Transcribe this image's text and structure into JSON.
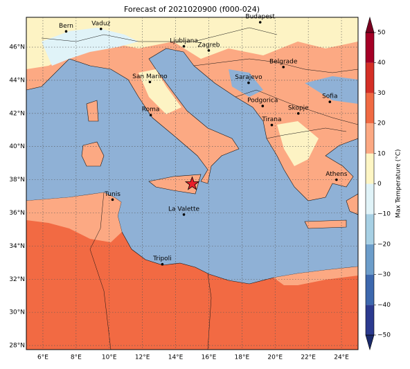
{
  "map": {
    "title": "Forecast of 2021020900 (f000-024)",
    "xlim": [
      5,
      25
    ],
    "ylim": [
      27.75,
      47.8
    ],
    "grid": true,
    "xticks": [
      {
        "value": 6,
        "label": "6°E"
      },
      {
        "value": 8,
        "label": "8°E"
      },
      {
        "value": 10,
        "label": "10°E"
      },
      {
        "value": 12,
        "label": "12°E"
      },
      {
        "value": 14,
        "label": "14°E"
      },
      {
        "value": 16,
        "label": "16°E"
      },
      {
        "value": 18,
        "label": "18°E"
      },
      {
        "value": 20,
        "label": "20°E"
      },
      {
        "value": 22,
        "label": "22°E"
      },
      {
        "value": 24,
        "label": "24°E"
      }
    ],
    "yticks": [
      {
        "value": 28,
        "label": "28°N"
      },
      {
        "value": 30,
        "label": "30°N"
      },
      {
        "value": 32,
        "label": "32°N"
      },
      {
        "value": 34,
        "label": "34°N"
      },
      {
        "value": 36,
        "label": "36°N"
      },
      {
        "value": 38,
        "label": "38°N"
      },
      {
        "value": 40,
        "label": "40°N"
      },
      {
        "value": 42,
        "label": "42°N"
      },
      {
        "value": 44,
        "label": "44°N"
      },
      {
        "value": 46,
        "label": "46°N"
      }
    ],
    "cities": [
      {
        "name": "Bern",
        "lon": 7.4,
        "lat": 46.95
      },
      {
        "name": "Vaduz",
        "lon": 9.5,
        "lat": 47.1
      },
      {
        "name": "Budapest",
        "lon": 19.1,
        "lat": 47.5
      },
      {
        "name": "Ljubljana",
        "lon": 14.5,
        "lat": 46.05
      },
      {
        "name": "Zagreb",
        "lon": 16.0,
        "lat": 45.8
      },
      {
        "name": "Belgrade",
        "lon": 20.5,
        "lat": 44.8
      },
      {
        "name": "San Marino",
        "lon": 12.45,
        "lat": 43.9
      },
      {
        "name": "Sarajevo",
        "lon": 18.4,
        "lat": 43.85
      },
      {
        "name": "Sofia",
        "lon": 23.3,
        "lat": 42.7
      },
      {
        "name": "Podgorica",
        "lon": 19.25,
        "lat": 42.45
      },
      {
        "name": "Skopje",
        "lon": 21.4,
        "lat": 42.0
      },
      {
        "name": "Roma",
        "lon": 12.5,
        "lat": 41.9
      },
      {
        "name": "Tirana",
        "lon": 19.8,
        "lat": 41.3
      },
      {
        "name": "Athens",
        "lon": 23.7,
        "lat": 38.0
      },
      {
        "name": "Tunis",
        "lon": 10.2,
        "lat": 36.8
      },
      {
        "name": "La Valette",
        "lon": 14.5,
        "lat": 35.9
      },
      {
        "name": "Tripoli",
        "lon": 13.2,
        "lat": 32.9
      }
    ],
    "star": {
      "lon": 15.0,
      "lat": 37.75,
      "color": "#e8202a"
    }
  },
  "colorbar": {
    "label": "Max Temperature (°C)",
    "ticks": [
      {
        "value": -50,
        "label": "−50"
      },
      {
        "value": -40,
        "label": "−40"
      },
      {
        "value": -30,
        "label": "−30"
      },
      {
        "value": -20,
        "label": "−20"
      },
      {
        "value": -10,
        "label": "−10"
      },
      0,
      10,
      20,
      30,
      40,
      50
    ],
    "colors": [
      "#2b3a8f",
      "#3d68ae",
      "#6c9dca",
      "#a7d0e4",
      "#e0f3f8",
      "#fef6c4",
      "#fca983",
      "#f06a43",
      "#d42f26",
      "#a50026"
    ],
    "under_color": "#1b2a6b",
    "over_color": "#7a0020"
  }
}
